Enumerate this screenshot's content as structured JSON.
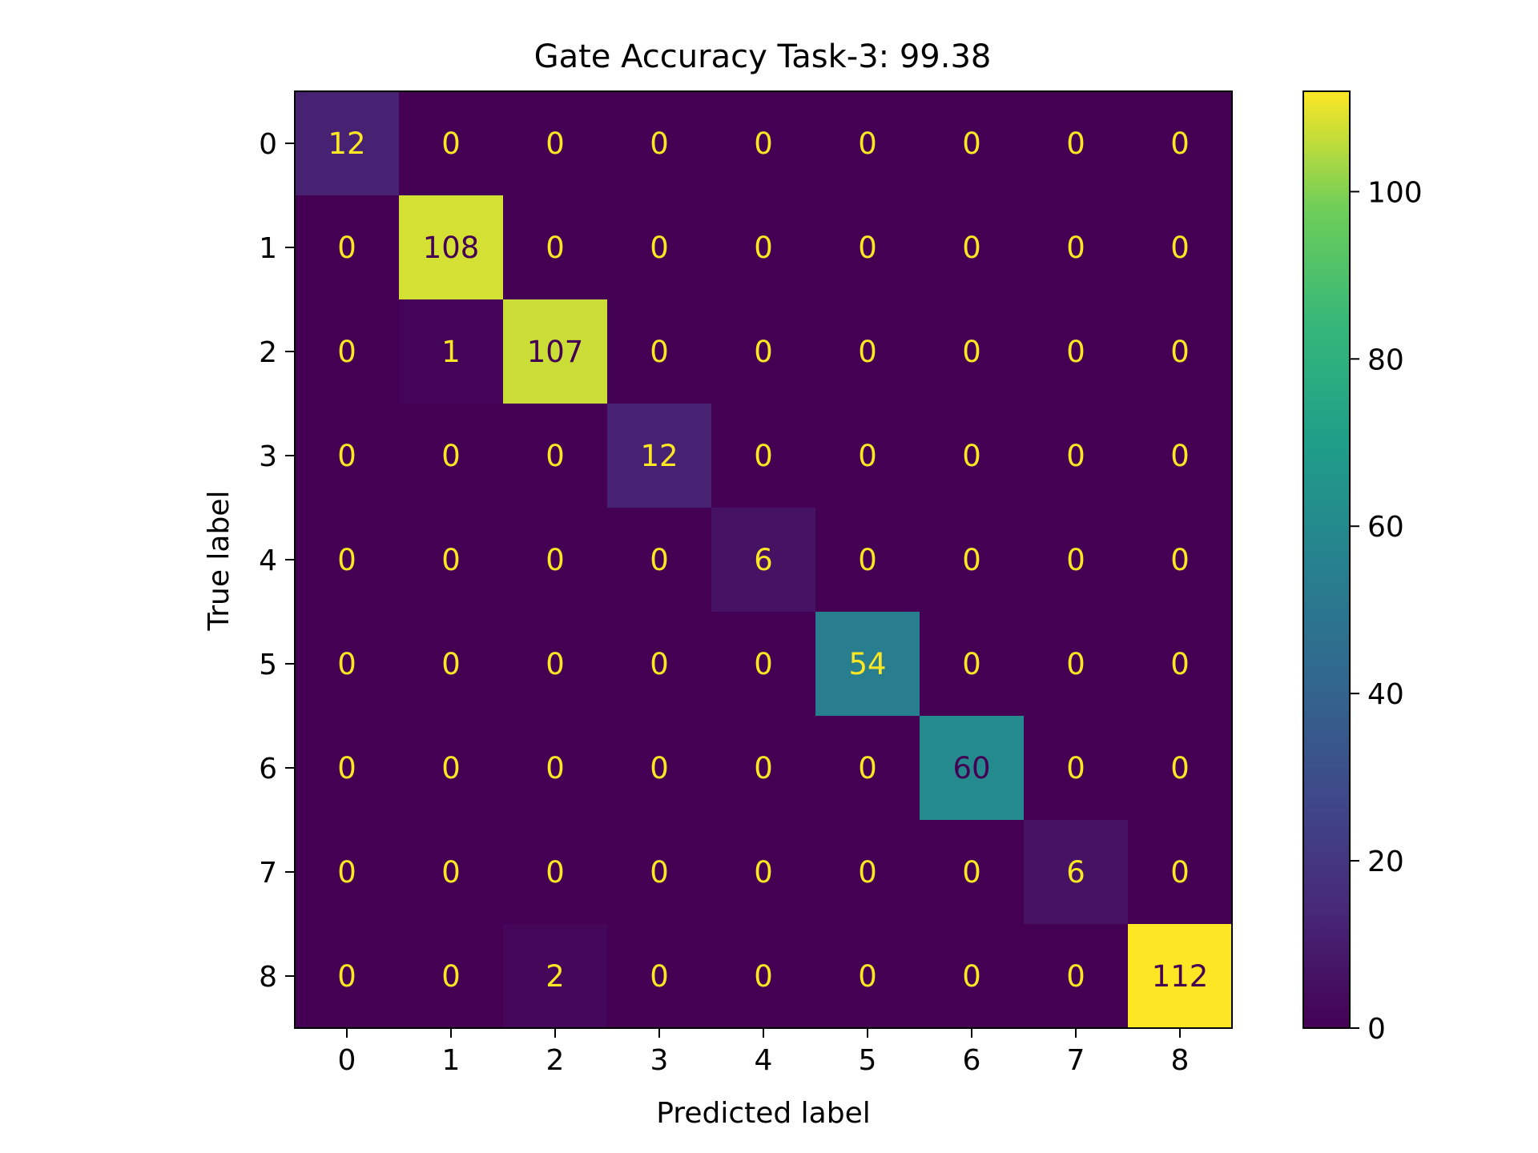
{
  "chart_data": {
    "type": "heatmap",
    "title": "Gate Accuracy Task-3: 99.38",
    "xlabel": "Predicted label",
    "ylabel": "True label",
    "x_categories": [
      "0",
      "1",
      "2",
      "3",
      "4",
      "5",
      "6",
      "7",
      "8"
    ],
    "y_categories": [
      "0",
      "1",
      "2",
      "3",
      "4",
      "5",
      "6",
      "7",
      "8"
    ],
    "matrix": [
      [
        12,
        0,
        0,
        0,
        0,
        0,
        0,
        0,
        0
      ],
      [
        0,
        108,
        0,
        0,
        0,
        0,
        0,
        0,
        0
      ],
      [
        0,
        1,
        107,
        0,
        0,
        0,
        0,
        0,
        0
      ],
      [
        0,
        0,
        0,
        12,
        0,
        0,
        0,
        0,
        0
      ],
      [
        0,
        0,
        0,
        0,
        6,
        0,
        0,
        0,
        0
      ],
      [
        0,
        0,
        0,
        0,
        0,
        54,
        0,
        0,
        0
      ],
      [
        0,
        0,
        0,
        0,
        0,
        0,
        60,
        0,
        0
      ],
      [
        0,
        0,
        0,
        0,
        0,
        0,
        0,
        6,
        0
      ],
      [
        0,
        0,
        2,
        0,
        0,
        0,
        0,
        0,
        112
      ]
    ],
    "colormap": "viridis",
    "colorbar": {
      "range": [
        0,
        112
      ],
      "ticks": [
        0,
        20,
        40,
        60,
        80,
        100
      ],
      "tick_labels": [
        "0",
        "20",
        "40",
        "60",
        "80",
        "100"
      ]
    },
    "text_colors": {
      "on_dark": "#fde725",
      "on_light": "#440154"
    },
    "grid": false,
    "legend": "colorbar-right"
  }
}
